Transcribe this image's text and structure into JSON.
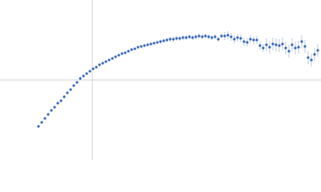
{
  "chart_data": {
    "type": "scatter",
    "xlim": [
      -115,
      285
    ],
    "ylim": [
      -100,
      100
    ],
    "axis_color": "#d0d0d0",
    "color": "#3a68b8",
    "error_color": "#aabbdd",
    "x": [
      -67,
      -63,
      -59,
      -55,
      -51,
      -47,
      -43,
      -39,
      -35,
      -31,
      -27,
      -23,
      -19,
      -15,
      -11,
      -7,
      -3,
      1,
      5,
      9,
      13,
      17,
      21,
      25,
      29,
      33,
      37,
      41,
      45,
      49,
      53,
      57,
      61,
      65,
      69,
      73,
      77,
      81,
      85,
      89,
      93,
      97,
      101,
      105,
      109,
      113,
      117,
      121,
      125,
      129,
      133,
      137,
      141,
      145,
      149,
      153,
      157,
      161,
      165,
      169,
      173,
      177,
      181,
      185,
      189,
      193,
      197,
      201,
      205,
      209,
      213,
      217,
      221,
      225,
      229,
      233,
      237,
      241,
      245,
      249,
      253,
      257,
      261,
      265,
      269,
      273,
      277,
      281
    ],
    "values": [
      -58,
      -53,
      -48,
      -43,
      -38,
      -34,
      -29,
      -26,
      -21,
      -16,
      -12,
      -7,
      -3,
      2,
      5,
      8,
      11,
      14,
      16,
      19,
      21,
      23,
      25,
      27,
      29,
      31,
      33,
      34,
      36,
      38,
      39,
      41,
      42,
      43,
      44,
      45,
      46,
      47,
      48,
      49,
      50,
      51,
      51,
      52,
      52,
      53,
      53,
      54,
      53,
      54,
      55,
      54,
      55,
      54,
      53,
      54,
      51,
      55,
      55,
      56,
      54,
      51,
      53,
      52,
      48,
      47,
      51,
      50,
      50,
      43,
      40,
      44,
      41,
      45,
      44,
      43,
      45,
      40,
      36,
      44,
      40,
      41,
      48,
      42,
      28,
      25,
      32,
      37
    ],
    "errors": [
      1.5,
      1.5,
      1.5,
      1.5,
      1.5,
      1.5,
      1.5,
      1.5,
      1.5,
      1.5,
      1.5,
      1.5,
      1.5,
      1.5,
      1.5,
      1.5,
      1.5,
      1.5,
      1.5,
      1.5,
      1.5,
      1.5,
      1.5,
      1.5,
      1.5,
      1.5,
      1.5,
      1.5,
      1.5,
      1.5,
      1.5,
      1.5,
      1.5,
      1.5,
      1.5,
      1.5,
      1.5,
      1.5,
      3,
      3,
      3,
      3,
      3,
      3,
      3,
      3,
      3,
      3,
      3,
      3,
      3,
      3,
      3,
      3,
      3,
      3,
      3,
      3,
      5,
      5,
      5,
      5,
      5,
      5,
      5,
      5,
      5,
      5,
      5,
      5,
      5,
      8,
      8,
      8,
      8,
      8,
      8,
      8,
      8,
      8,
      8,
      8,
      8,
      8,
      8,
      8,
      8,
      8
    ]
  }
}
